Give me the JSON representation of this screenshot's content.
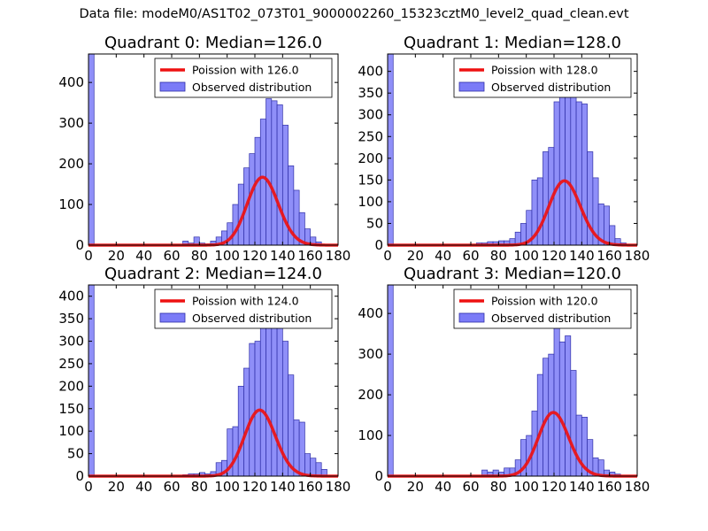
{
  "suptitle": "Data file: modeM0/AS1T02_073T01_9000002260_15323cztM0_level2_quad_clean.evt",
  "colors": {
    "histogram_fill": "#7b7bf7",
    "histogram_edge": "#3030a8",
    "poisson_line": "#ee1111"
  },
  "chart_data": [
    {
      "type": "bar",
      "title": "Quadrant 0: Median=126.0",
      "xlim": [
        0,
        180
      ],
      "ylim": [
        0,
        470
      ],
      "xticks": [
        0,
        20,
        40,
        60,
        80,
        100,
        120,
        140,
        160,
        180
      ],
      "yticks": [
        0,
        100,
        200,
        300,
        400
      ],
      "legend": {
        "position": "top-right",
        "line_label": "Poission with 126.0",
        "bar_label": "Observed distribution"
      },
      "bin_width": 4,
      "bins": [
        [
          0,
          470
        ],
        [
          68,
          10
        ],
        [
          72,
          5
        ],
        [
          76,
          20
        ],
        [
          80,
          5
        ],
        [
          84,
          3
        ],
        [
          88,
          10
        ],
        [
          92,
          20
        ],
        [
          96,
          35
        ],
        [
          100,
          55
        ],
        [
          104,
          100
        ],
        [
          108,
          150
        ],
        [
          112,
          190
        ],
        [
          116,
          225
        ],
        [
          120,
          265
        ],
        [
          124,
          310
        ],
        [
          128,
          360
        ],
        [
          132,
          355
        ],
        [
          136,
          345
        ],
        [
          140,
          295
        ],
        [
          144,
          195
        ],
        [
          148,
          135
        ],
        [
          152,
          80
        ],
        [
          156,
          40
        ],
        [
          160,
          20
        ],
        [
          164,
          8
        ]
      ],
      "poisson_mean": 126,
      "poisson_scale": 4700
    },
    {
      "type": "bar",
      "title": "Quadrant 1: Median=128.0",
      "xlim": [
        0,
        180
      ],
      "ylim": [
        0,
        440
      ],
      "xticks": [
        0,
        20,
        40,
        60,
        80,
        100,
        120,
        140,
        160,
        180
      ],
      "yticks": [
        0,
        50,
        100,
        150,
        200,
        250,
        300,
        350,
        400
      ],
      "legend": {
        "position": "top-right",
        "line_label": "Poission with 128.0",
        "bar_label": "Observed distribution"
      },
      "bin_width": 4,
      "bins": [
        [
          0,
          440
        ],
        [
          64,
          5
        ],
        [
          68,
          5
        ],
        [
          72,
          8
        ],
        [
          76,
          8
        ],
        [
          80,
          10
        ],
        [
          84,
          10
        ],
        [
          88,
          15
        ],
        [
          92,
          30
        ],
        [
          96,
          50
        ],
        [
          100,
          80
        ],
        [
          104,
          150
        ],
        [
          108,
          155
        ],
        [
          112,
          215
        ],
        [
          116,
          225
        ],
        [
          120,
          330
        ],
        [
          124,
          380
        ],
        [
          128,
          395
        ],
        [
          132,
          410
        ],
        [
          136,
          330
        ],
        [
          140,
          325
        ],
        [
          144,
          215
        ],
        [
          148,
          155
        ],
        [
          152,
          95
        ],
        [
          156,
          90
        ],
        [
          160,
          45
        ],
        [
          164,
          15
        ],
        [
          168,
          5
        ]
      ],
      "poisson_mean": 128,
      "poisson_scale": 4200
    },
    {
      "type": "bar",
      "title": "Quadrant 2: Median=124.0",
      "xlim": [
        0,
        180
      ],
      "ylim": [
        0,
        425
      ],
      "xticks": [
        0,
        20,
        40,
        60,
        80,
        100,
        120,
        140,
        160,
        180
      ],
      "yticks": [
        0,
        50,
        100,
        150,
        200,
        250,
        300,
        350,
        400
      ],
      "legend": {
        "position": "top-right",
        "line_label": "Poission with 124.0",
        "bar_label": "Observed distribution"
      },
      "bin_width": 4,
      "bins": [
        [
          0,
          425
        ],
        [
          68,
          3
        ],
        [
          72,
          5
        ],
        [
          76,
          5
        ],
        [
          80,
          8
        ],
        [
          84,
          5
        ],
        [
          88,
          10
        ],
        [
          92,
          30
        ],
        [
          96,
          35
        ],
        [
          100,
          105
        ],
        [
          104,
          110
        ],
        [
          108,
          200
        ],
        [
          112,
          240
        ],
        [
          116,
          295
        ],
        [
          120,
          300
        ],
        [
          124,
          340
        ],
        [
          128,
          350
        ],
        [
          132,
          410
        ],
        [
          136,
          370
        ],
        [
          140,
          300
        ],
        [
          144,
          225
        ],
        [
          148,
          125
        ],
        [
          152,
          120
        ],
        [
          156,
          50
        ],
        [
          160,
          40
        ],
        [
          164,
          30
        ],
        [
          168,
          15
        ]
      ],
      "poisson_mean": 124,
      "poisson_scale": 4100
    },
    {
      "type": "bar",
      "title": "Quadrant 3: Median=120.0",
      "xlim": [
        0,
        180
      ],
      "ylim": [
        0,
        470
      ],
      "xticks": [
        0,
        20,
        40,
        60,
        80,
        100,
        120,
        140,
        160,
        180
      ],
      "yticks": [
        0,
        100,
        200,
        300,
        400
      ],
      "legend": {
        "position": "top-right",
        "line_label": "Poission with 120.0",
        "bar_label": "Observed distribution"
      },
      "bin_width": 4,
      "bins": [
        [
          0,
          470
        ],
        [
          68,
          15
        ],
        [
          72,
          10
        ],
        [
          76,
          15
        ],
        [
          80,
          10
        ],
        [
          84,
          20
        ],
        [
          88,
          20
        ],
        [
          92,
          40
        ],
        [
          96,
          90
        ],
        [
          100,
          100
        ],
        [
          104,
          160
        ],
        [
          108,
          250
        ],
        [
          112,
          290
        ],
        [
          116,
          300
        ],
        [
          120,
          370
        ],
        [
          124,
          330
        ],
        [
          128,
          345
        ],
        [
          132,
          260
        ],
        [
          136,
          150
        ],
        [
          140,
          145
        ],
        [
          144,
          90
        ],
        [
          148,
          45
        ],
        [
          152,
          40
        ],
        [
          156,
          15
        ],
        [
          160,
          10
        ],
        [
          164,
          5
        ]
      ],
      "poisson_mean": 120,
      "poisson_scale": 4300
    }
  ]
}
